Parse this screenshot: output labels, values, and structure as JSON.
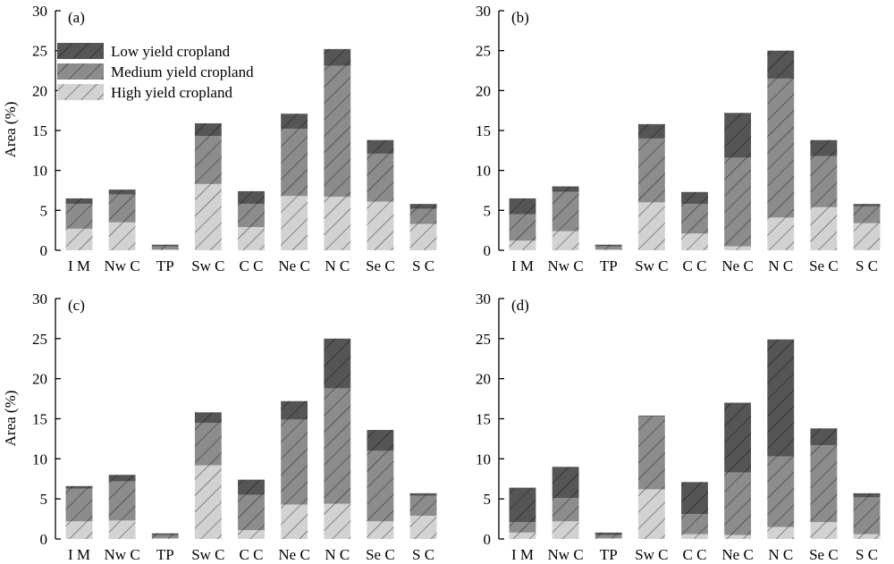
{
  "figure": {
    "ylabel": "Area (%)",
    "legend": [
      {
        "name": "Low yield cropland",
        "color": "#555555"
      },
      {
        "name": "Medium yield cropland",
        "color": "#8c8c8c"
      },
      {
        "name": "High yield cropland",
        "color": "#d2d2d2"
      }
    ]
  },
  "chart_data": [
    {
      "type": "bar",
      "stacked": true,
      "panel": "(a)",
      "categories": [
        "I M",
        "Nw C",
        "TP",
        "Sw C",
        "C C",
        "Ne C",
        "N C",
        "Se C",
        "S C"
      ],
      "ylim": [
        0,
        30
      ],
      "yticks": [
        0,
        5,
        10,
        15,
        20,
        25,
        30
      ],
      "legend_position": "top-left",
      "series": [
        {
          "name": "High yield cropland",
          "values": [
            2.7,
            3.5,
            0.1,
            8.3,
            2.9,
            6.8,
            6.7,
            6.1,
            3.3
          ]
        },
        {
          "name": "Medium yield cropland",
          "values": [
            3.1,
            3.5,
            0.4,
            6.0,
            2.9,
            8.4,
            16.4,
            6.0,
            1.9
          ]
        },
        {
          "name": "Low yield cropland",
          "values": [
            0.7,
            0.6,
            0.2,
            1.6,
            1.6,
            1.9,
            2.1,
            1.7,
            0.6
          ]
        }
      ]
    },
    {
      "type": "bar",
      "stacked": true,
      "panel": "(b)",
      "categories": [
        "I M",
        "Nw C",
        "TP",
        "Sw C",
        "C C",
        "Ne C",
        "N C",
        "Se C",
        "S C"
      ],
      "ylim": [
        0,
        30
      ],
      "yticks": [
        0,
        5,
        10,
        15,
        20,
        25,
        30
      ],
      "series": [
        {
          "name": "High yield cropland",
          "values": [
            1.2,
            2.4,
            0.1,
            6.0,
            2.1,
            0.5,
            4.1,
            5.4,
            3.4
          ]
        },
        {
          "name": "Medium yield cropland",
          "values": [
            3.3,
            4.9,
            0.4,
            8.0,
            3.7,
            11.1,
            17.4,
            6.4,
            2.1
          ]
        },
        {
          "name": "Low yield cropland",
          "values": [
            2.0,
            0.7,
            0.2,
            1.8,
            1.5,
            5.6,
            3.5,
            2.0,
            0.3
          ]
        }
      ]
    },
    {
      "type": "bar",
      "stacked": true,
      "panel": "(c)",
      "categories": [
        "I M",
        "Nw C",
        "TP",
        "Sw C",
        "C C",
        "Ne C",
        "N C",
        "Se C",
        "S C"
      ],
      "ylim": [
        0,
        30
      ],
      "yticks": [
        0,
        5,
        10,
        15,
        20,
        25,
        30
      ],
      "series": [
        {
          "name": "High yield cropland",
          "values": [
            2.2,
            2.3,
            0.1,
            9.2,
            1.1,
            4.3,
            4.4,
            2.2,
            2.9
          ]
        },
        {
          "name": "Medium yield cropland",
          "values": [
            4.1,
            4.9,
            0.4,
            5.3,
            4.4,
            10.6,
            14.4,
            8.8,
            2.5
          ]
        },
        {
          "name": "Low yield cropland",
          "values": [
            0.3,
            0.8,
            0.2,
            1.3,
            1.9,
            2.3,
            6.2,
            2.6,
            0.3
          ]
        }
      ]
    },
    {
      "type": "bar",
      "stacked": true,
      "panel": "(d)",
      "categories": [
        "I M",
        "Nw C",
        "TP",
        "Sw C",
        "C C",
        "Ne C",
        "N C",
        "Se C",
        "S C"
      ],
      "ylim": [
        0,
        30
      ],
      "yticks": [
        0,
        5,
        10,
        15,
        20,
        25,
        30
      ],
      "series": [
        {
          "name": "High yield cropland",
          "values": [
            0.8,
            2.2,
            0.1,
            6.2,
            0.6,
            0.5,
            1.5,
            2.1,
            0.6
          ]
        },
        {
          "name": "Medium yield cropland",
          "values": [
            1.3,
            2.9,
            0.4,
            9.1,
            2.5,
            7.8,
            8.8,
            9.6,
            4.6
          ]
        },
        {
          "name": "Low yield cropland",
          "values": [
            4.3,
            3.9,
            0.3,
            0.1,
            4.0,
            8.7,
            14.6,
            2.1,
            0.5
          ]
        }
      ]
    }
  ]
}
